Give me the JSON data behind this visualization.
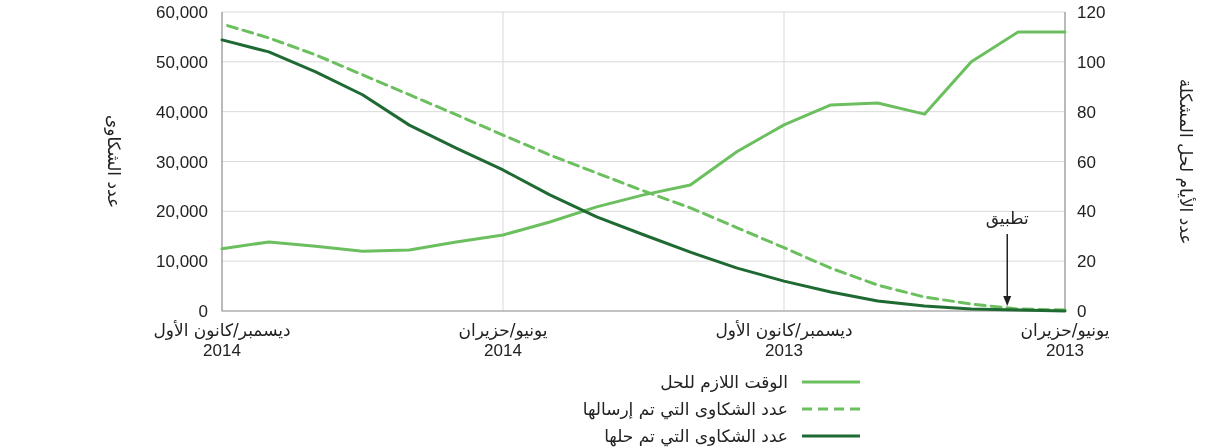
{
  "chart_data": {
    "type": "line",
    "xlabel": null,
    "ylabel": "عدد الشكاوى",
    "y2label": "عدد الأيام لحل المشكلة",
    "x": [
      "2013-06",
      "2013-07",
      "2013-08",
      "2013-09",
      "2013-10",
      "2013-11",
      "2013-12",
      "2014-01",
      "2014-02",
      "2014-03",
      "2014-04",
      "2014-05",
      "2014-06",
      "2014-07",
      "2014-08",
      "2014-09",
      "2014-10",
      "2014-11",
      "2014-12"
    ],
    "series": [
      {
        "name": "الوقت اللازم للحل",
        "color": "#6cbf5f",
        "axis": "y2",
        "values": [
          112,
          112,
          100,
          79,
          83.5,
          82.7,
          74.7,
          64,
          50.6,
          46.6,
          41.8,
          35.7,
          30.5,
          27.7,
          24.5,
          24,
          26,
          27.7,
          25
        ]
      },
      {
        "name": "عدد الشكاوى التي تم إرسالها",
        "color": "#6cbf5f",
        "line_style": "dashed",
        "values": [
          200,
          400,
          1400,
          2800,
          5200,
          8600,
          12700,
          16700,
          20700,
          24100,
          27700,
          31300,
          35300,
          39400,
          43400,
          47400,
          51400,
          54800,
          57600
        ]
      },
      {
        "name": "عدد الشكاوى التي تم حلها",
        "color": "#1f6a32",
        "values": [
          0,
          200,
          400,
          1000,
          2000,
          3800,
          6000,
          8600,
          11800,
          15300,
          18900,
          23300,
          28300,
          32700,
          37300,
          43400,
          48000,
          52000,
          54400
        ]
      }
    ],
    "xlim": [
      "2014-12",
      "2013-06"
    ],
    "xticks": [
      {
        "value": "2014-12",
        "label": "ديسمبر/كانون الأول 2014"
      },
      {
        "value": "2014-06",
        "label": "يونيو/حزيران 2014"
      },
      {
        "value": "2013-12",
        "label": "ديسمبر/كانون الأول 2013"
      },
      {
        "value": "2013-06",
        "label": "يونيو/حزيران 2013"
      }
    ],
    "ylim": [
      0,
      60000
    ],
    "yticks": [
      {
        "value": 0,
        "label": "0"
      },
      {
        "value": 10000,
        "label": "10,000"
      },
      {
        "value": 20000,
        "label": "20,000"
      },
      {
        "value": 30000,
        "label": "30,000"
      },
      {
        "value": 40000,
        "label": "40,000"
      },
      {
        "value": 50000,
        "label": "50,000"
      },
      {
        "value": 60000,
        "label": "60,000"
      }
    ],
    "y2lim": [
      0,
      120
    ],
    "y2ticks": [
      0,
      20,
      40,
      60,
      80,
      100,
      120
    ],
    "annotations": [
      {
        "text": "تطبيق",
        "x": "2013-07-08",
        "y": 1000
      }
    ],
    "grid": true,
    "legend": "bottom"
  }
}
